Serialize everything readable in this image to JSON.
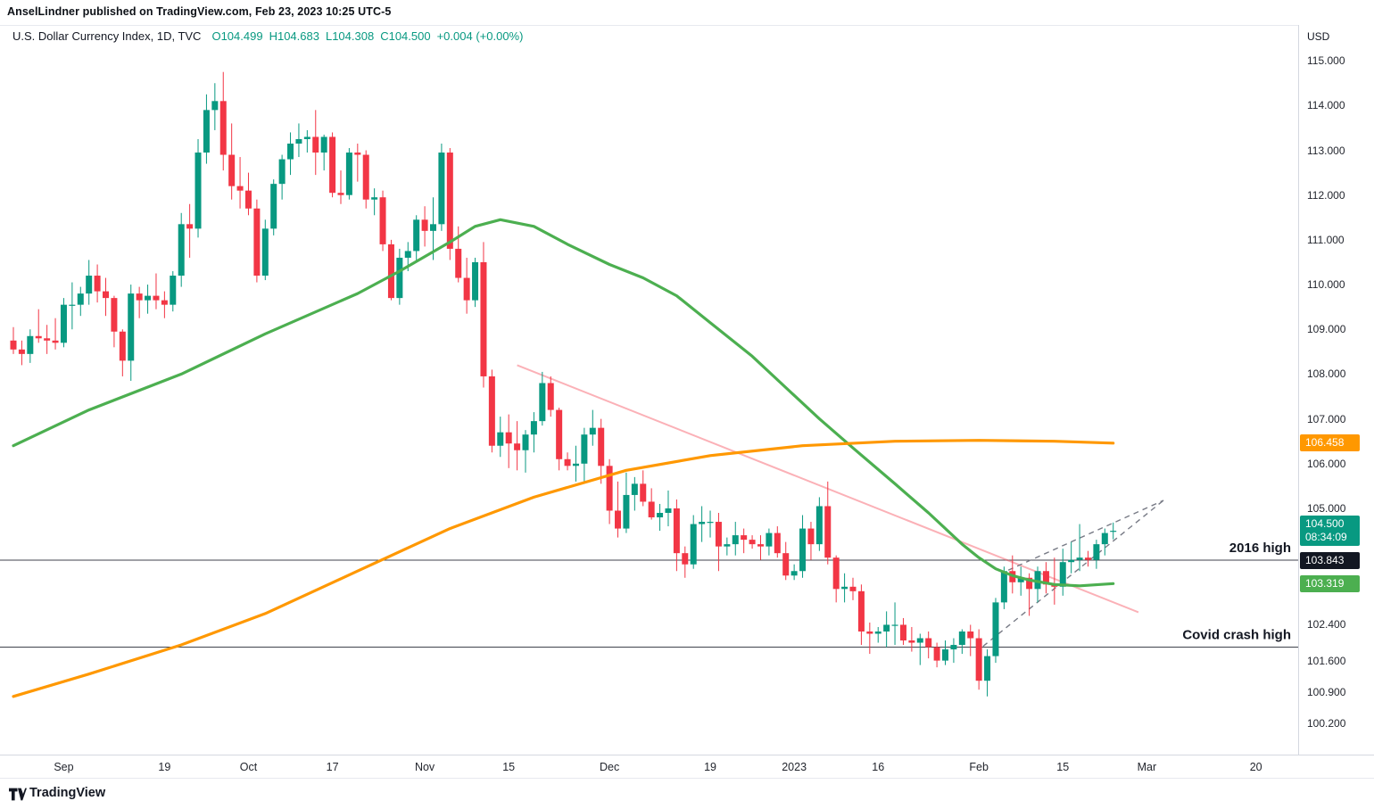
{
  "attribution": "AnselLindner published on TradingView.com, Feb 23, 2023 10:25 UTC-5",
  "legend": {
    "title": "U.S. Dollar Currency Index, 1D, TVC",
    "o_label": "O",
    "o_value": "104.499",
    "h_label": "H",
    "h_value": "104.683",
    "l_label": "L",
    "l_value": "104.308",
    "c_label": "C",
    "c_value": "104.500",
    "change": "+0.004 (+0.00%)"
  },
  "price_axis": {
    "unit": "USD",
    "labels": [
      {
        "price": 115.0,
        "text": "115.000"
      },
      {
        "price": 114.0,
        "text": "114.000"
      },
      {
        "price": 113.0,
        "text": "113.000"
      },
      {
        "price": 112.0,
        "text": "112.000"
      },
      {
        "price": 111.0,
        "text": "111.000"
      },
      {
        "price": 110.0,
        "text": "110.000"
      },
      {
        "price": 109.0,
        "text": "109.000"
      },
      {
        "price": 108.0,
        "text": "108.000"
      },
      {
        "price": 107.0,
        "text": "107.000"
      },
      {
        "price": 106.0,
        "text": "106.000"
      },
      {
        "price": 105.0,
        "text": "105.000"
      },
      {
        "price": 102.4,
        "text": "102.400"
      },
      {
        "price": 101.6,
        "text": "101.600"
      },
      {
        "price": 100.9,
        "text": "100.900"
      },
      {
        "price": 100.2,
        "text": "100.200"
      }
    ],
    "chips": [
      {
        "id": "ma-orange-price",
        "text": "106.458",
        "price": 106.458,
        "bg": "#ff9800"
      },
      {
        "id": "last-price",
        "text": "104.500",
        "subtext": "08:34:09",
        "price": 104.5,
        "bg": "#089981"
      },
      {
        "id": "hline-2016-price",
        "text": "103.843",
        "price": 103.843,
        "bg": "#131722"
      },
      {
        "id": "ma-green-price",
        "text": "103.319",
        "price": 103.319,
        "bg": "#4caf50"
      }
    ]
  },
  "time_axis": {
    "ticks": [
      {
        "i": 6,
        "label": "Sep"
      },
      {
        "i": 18,
        "label": "19"
      },
      {
        "i": 28,
        "label": "Oct"
      },
      {
        "i": 38,
        "label": "17"
      },
      {
        "i": 49,
        "label": "Nov"
      },
      {
        "i": 59,
        "label": "15"
      },
      {
        "i": 71,
        "label": "Dec"
      },
      {
        "i": 83,
        "label": "19"
      },
      {
        "i": 93,
        "label": "2023"
      },
      {
        "i": 103,
        "label": "16"
      },
      {
        "i": 115,
        "label": "Feb"
      },
      {
        "i": 125,
        "label": "15"
      },
      {
        "i": 135,
        "label": "Mar"
      },
      {
        "i": 148,
        "label": "20"
      }
    ]
  },
  "footer": {
    "brand": "TradingView"
  },
  "chart_data": {
    "type": "candlestick",
    "title": "U.S. Dollar Currency Index",
    "interval": "1D",
    "exchange": "TVC",
    "ohlc_current": {
      "open": 104.499,
      "high": 104.683,
      "low": 104.308,
      "close": 104.5,
      "change": "+0.004 (+0.00%)"
    },
    "ylim": [
      99.5,
      115.8
    ],
    "up_color": "#089981",
    "down_color": "#f23645",
    "candles": [
      [
        108.75,
        109.05,
        108.45,
        108.55
      ],
      [
        108.55,
        108.75,
        108.2,
        108.45
      ],
      [
        108.45,
        109.0,
        108.25,
        108.85
      ],
      [
        108.85,
        109.45,
        108.7,
        108.8
      ],
      [
        108.8,
        109.1,
        108.45,
        108.75
      ],
      [
        108.75,
        109.25,
        108.55,
        108.7
      ],
      [
        108.7,
        109.7,
        108.6,
        109.55
      ],
      [
        109.55,
        110.05,
        109.0,
        109.55
      ],
      [
        109.55,
        109.95,
        109.3,
        109.8
      ],
      [
        109.8,
        110.55,
        109.55,
        110.2
      ],
      [
        110.2,
        110.45,
        109.6,
        109.85
      ],
      [
        109.85,
        110.15,
        109.3,
        109.7
      ],
      [
        109.7,
        109.75,
        108.6,
        108.95
      ],
      [
        108.95,
        109.0,
        107.95,
        108.3
      ],
      [
        108.3,
        110.0,
        107.85,
        109.8
      ],
      [
        109.8,
        109.95,
        109.25,
        109.65
      ],
      [
        109.65,
        110.0,
        109.35,
        109.75
      ],
      [
        109.75,
        110.25,
        109.45,
        109.65
      ],
      [
        109.65,
        109.85,
        109.25,
        109.55
      ],
      [
        109.55,
        110.3,
        109.4,
        110.2
      ],
      [
        110.2,
        111.6,
        109.95,
        111.35
      ],
      [
        111.35,
        111.8,
        110.6,
        111.25
      ],
      [
        111.25,
        113.25,
        111.05,
        112.95
      ],
      [
        112.95,
        114.25,
        112.7,
        113.9
      ],
      [
        113.9,
        114.5,
        113.45,
        114.1
      ],
      [
        114.1,
        114.75,
        112.55,
        112.9
      ],
      [
        112.9,
        113.6,
        111.9,
        112.2
      ],
      [
        112.2,
        112.85,
        111.7,
        112.1
      ],
      [
        112.1,
        112.5,
        111.55,
        111.7
      ],
      [
        111.7,
        111.9,
        110.05,
        110.2
      ],
      [
        110.2,
        111.45,
        110.1,
        111.25
      ],
      [
        111.25,
        112.35,
        111.1,
        112.25
      ],
      [
        112.25,
        112.9,
        111.9,
        112.8
      ],
      [
        112.8,
        113.4,
        112.45,
        113.15
      ],
      [
        113.15,
        113.6,
        112.85,
        113.25
      ],
      [
        113.25,
        113.45,
        112.95,
        113.3
      ],
      [
        113.3,
        113.9,
        112.45,
        112.95
      ],
      [
        112.95,
        113.35,
        112.55,
        113.3
      ],
      [
        113.3,
        113.4,
        111.95,
        112.05
      ],
      [
        112.05,
        112.55,
        111.8,
        112.0
      ],
      [
        112.0,
        113.05,
        111.9,
        112.95
      ],
      [
        112.95,
        113.15,
        112.3,
        112.9
      ],
      [
        112.9,
        113.0,
        111.7,
        111.9
      ],
      [
        111.9,
        112.15,
        111.55,
        111.95
      ],
      [
        111.95,
        112.1,
        110.75,
        110.9
      ],
      [
        110.9,
        111.0,
        109.65,
        109.7
      ],
      [
        109.7,
        110.8,
        109.55,
        110.6
      ],
      [
        110.6,
        110.95,
        110.3,
        110.75
      ],
      [
        110.75,
        111.55,
        110.5,
        111.45
      ],
      [
        111.45,
        111.75,
        110.85,
        111.2
      ],
      [
        111.2,
        111.95,
        110.55,
        111.35
      ],
      [
        111.35,
        113.15,
        111.2,
        112.95
      ],
      [
        112.95,
        113.05,
        110.55,
        110.8
      ],
      [
        110.8,
        111.3,
        110.05,
        110.15
      ],
      [
        110.15,
        110.6,
        109.35,
        109.65
      ],
      [
        109.65,
        110.6,
        109.5,
        110.5
      ],
      [
        110.5,
        110.95,
        107.7,
        107.95
      ],
      [
        107.95,
        108.1,
        106.25,
        106.4
      ],
      [
        106.4,
        107.05,
        106.15,
        106.7
      ],
      [
        106.7,
        107.1,
        105.9,
        106.45
      ],
      [
        106.45,
        106.95,
        105.85,
        106.3
      ],
      [
        106.3,
        106.75,
        105.8,
        106.65
      ],
      [
        106.65,
        107.15,
        106.25,
        106.95
      ],
      [
        106.95,
        108.05,
        106.85,
        107.8
      ],
      [
        107.8,
        107.95,
        107.05,
        107.2
      ],
      [
        107.2,
        107.25,
        105.85,
        106.1
      ],
      [
        106.1,
        106.25,
        105.85,
        105.95
      ],
      [
        105.95,
        106.4,
        105.6,
        106.0
      ],
      [
        106.0,
        106.8,
        105.6,
        106.65
      ],
      [
        106.65,
        107.2,
        106.4,
        106.8
      ],
      [
        106.8,
        107.0,
        105.55,
        105.95
      ],
      [
        105.95,
        106.1,
        104.65,
        104.95
      ],
      [
        104.95,
        105.6,
        104.35,
        104.55
      ],
      [
        104.55,
        105.8,
        104.45,
        105.3
      ],
      [
        105.3,
        105.7,
        104.95,
        105.55
      ],
      [
        105.55,
        105.85,
        105.05,
        105.15
      ],
      [
        105.15,
        105.45,
        104.75,
        104.8
      ],
      [
        104.8,
        105.1,
        104.5,
        104.9
      ],
      [
        104.9,
        105.4,
        104.6,
        105.0
      ],
      [
        105.0,
        105.2,
        103.6,
        104.0
      ],
      [
        104.0,
        104.15,
        103.45,
        103.75
      ],
      [
        103.75,
        104.85,
        103.65,
        104.65
      ],
      [
        104.65,
        105.05,
        104.25,
        104.7
      ],
      [
        104.7,
        104.95,
        104.35,
        104.7
      ],
      [
        104.7,
        104.9,
        103.6,
        104.15
      ],
      [
        104.15,
        104.35,
        103.95,
        104.2
      ],
      [
        104.2,
        104.7,
        103.95,
        104.4
      ],
      [
        104.4,
        104.55,
        104.0,
        104.3
      ],
      [
        104.3,
        104.4,
        104.1,
        104.2
      ],
      [
        104.2,
        104.4,
        103.85,
        104.15
      ],
      [
        104.15,
        104.55,
        103.95,
        104.45
      ],
      [
        104.45,
        104.6,
        103.9,
        104.0
      ],
      [
        104.0,
        104.25,
        103.4,
        103.5
      ],
      [
        103.5,
        103.75,
        103.4,
        103.6
      ],
      [
        103.6,
        104.85,
        103.45,
        104.55
      ],
      [
        104.55,
        104.7,
        103.85,
        104.2
      ],
      [
        104.2,
        105.25,
        104.05,
        105.05
      ],
      [
        105.05,
        105.6,
        103.75,
        103.9
      ],
      [
        103.9,
        103.95,
        102.9,
        103.2
      ],
      [
        103.2,
        103.55,
        102.9,
        103.25
      ],
      [
        103.25,
        103.45,
        102.95,
        103.15
      ],
      [
        103.15,
        103.3,
        101.95,
        102.25
      ],
      [
        102.25,
        102.45,
        101.75,
        102.2
      ],
      [
        102.2,
        102.35,
        102.0,
        102.25
      ],
      [
        102.25,
        102.7,
        101.9,
        102.4
      ],
      [
        102.4,
        102.9,
        101.95,
        102.4
      ],
      [
        102.4,
        102.55,
        101.95,
        102.05
      ],
      [
        102.05,
        102.35,
        101.8,
        102.0
      ],
      [
        102.0,
        102.2,
        101.5,
        102.1
      ],
      [
        102.1,
        102.25,
        101.65,
        101.9
      ],
      [
        101.9,
        102.0,
        101.45,
        101.6
      ],
      [
        101.6,
        102.05,
        101.5,
        101.85
      ],
      [
        101.85,
        102.1,
        101.55,
        101.95
      ],
      [
        101.95,
        102.3,
        101.75,
        102.25
      ],
      [
        102.25,
        102.4,
        101.7,
        102.1
      ],
      [
        102.1,
        102.3,
        100.95,
        101.15
      ],
      [
        101.15,
        101.85,
        100.8,
        101.7
      ],
      [
        101.7,
        103.0,
        101.55,
        102.9
      ],
      [
        102.9,
        103.7,
        102.75,
        103.6
      ],
      [
        103.6,
        103.95,
        103.1,
        103.35
      ],
      [
        103.35,
        103.7,
        103.05,
        103.45
      ],
      [
        103.45,
        103.55,
        102.6,
        103.2
      ],
      [
        103.2,
        103.7,
        102.9,
        103.6
      ],
      [
        103.6,
        103.8,
        103.1,
        103.3
      ],
      [
        103.3,
        103.9,
        102.85,
        103.25
      ],
      [
        103.25,
        104.1,
        103.05,
        103.8
      ],
      [
        103.8,
        104.25,
        103.55,
        103.85
      ],
      [
        103.85,
        104.65,
        103.6,
        103.9
      ],
      [
        103.9,
        104.05,
        103.7,
        103.85
      ],
      [
        103.85,
        104.3,
        103.65,
        104.2
      ],
      [
        104.2,
        104.55,
        103.95,
        104.45
      ],
      [
        104.499,
        104.683,
        104.308,
        104.5
      ]
    ],
    "ma_green": {
      "color": "#4caf50",
      "last_value": 103.319,
      "points": [
        [
          0,
          106.4
        ],
        [
          9,
          107.2
        ],
        [
          20,
          108.0
        ],
        [
          30,
          108.9
        ],
        [
          41,
          109.8
        ],
        [
          46,
          110.3
        ],
        [
          52,
          110.95
        ],
        [
          55,
          111.3
        ],
        [
          58,
          111.45
        ],
        [
          62,
          111.3
        ],
        [
          66,
          110.9
        ],
        [
          71,
          110.45
        ],
        [
          75,
          110.15
        ],
        [
          79,
          109.75
        ],
        [
          83,
          109.15
        ],
        [
          88,
          108.4
        ],
        [
          92,
          107.7
        ],
        [
          96,
          107.0
        ],
        [
          100,
          106.35
        ],
        [
          105,
          105.55
        ],
        [
          109,
          104.9
        ],
        [
          113,
          104.2
        ],
        [
          115,
          103.9
        ],
        [
          117,
          103.65
        ],
        [
          119,
          103.5
        ],
        [
          121,
          103.4
        ],
        [
          124,
          103.3
        ],
        [
          127,
          103.27
        ],
        [
          131,
          103.319
        ]
      ]
    },
    "ma_orange": {
      "color": "#ff9800",
      "last_value": 106.458,
      "points": [
        [
          0,
          100.8
        ],
        [
          9,
          101.3
        ],
        [
          20,
          101.95
        ],
        [
          30,
          102.65
        ],
        [
          41,
          103.6
        ],
        [
          52,
          104.55
        ],
        [
          62,
          105.25
        ],
        [
          73,
          105.85
        ],
        [
          83,
          106.18
        ],
        [
          94,
          106.4
        ],
        [
          105,
          106.5
        ],
        [
          115,
          106.52
        ],
        [
          124,
          106.5
        ],
        [
          131,
          106.458
        ]
      ]
    },
    "trendline_pink": {
      "color": "#f7525f",
      "from": [
        60,
        108.2
      ],
      "to": [
        134,
        102.68
      ]
    },
    "wedge_dashed": {
      "color": "#787b86",
      "lines": [
        {
          "from": [
            115.5,
            101.92
          ],
          "to": [
            137,
            105.18
          ]
        },
        {
          "from": [
            118.5,
            103.62
          ],
          "to": [
            137,
            105.18
          ]
        }
      ]
    },
    "hlines": [
      {
        "price": 103.843,
        "label": "2016 high"
      },
      {
        "price": 101.9,
        "label": "Covid crash high"
      }
    ]
  }
}
